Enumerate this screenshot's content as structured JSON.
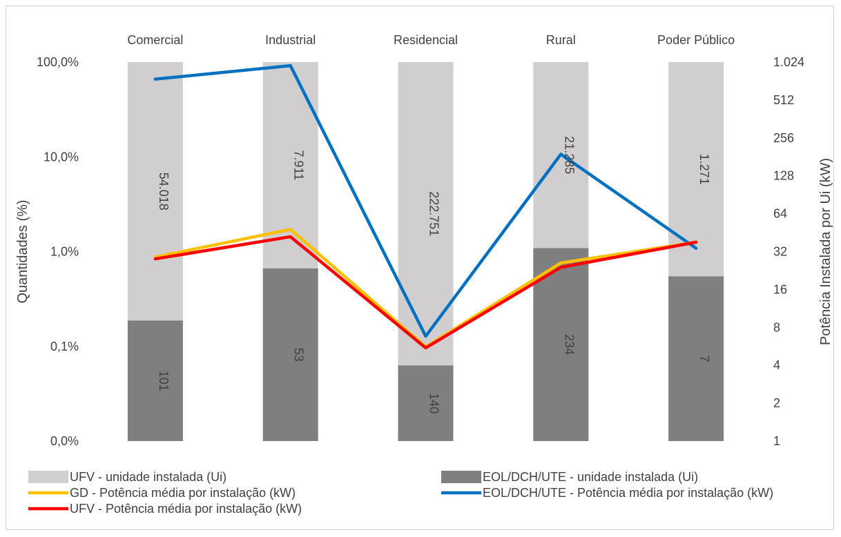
{
  "chart_data": {
    "type": "bar",
    "categories": [
      "Comercial",
      "Industrial",
      "Residencial",
      "Rural",
      "Poder Público"
    ],
    "bar_series": [
      {
        "name": "UFV - unidade instalada (Ui)",
        "color": "#d0cece",
        "values_pct": [
          99.81,
          99.33,
          99.94,
          98.91,
          99.45
        ],
        "labels": [
          "54.018",
          "7.911",
          "222.751",
          "21.285",
          "1.271"
        ]
      },
      {
        "name": "EOL/DCH/UTE - unidade instalada (Ui)",
        "color": "#7f7f7f",
        "values_pct": [
          0.187,
          0.665,
          0.0628,
          1.088,
          0.548
        ],
        "labels": [
          "101",
          "53",
          "140",
          "234",
          "7"
        ]
      }
    ],
    "line_series": [
      {
        "name": "GD - Potência média por instalação (kW)",
        "color": "#ffc000",
        "values": [
          29,
          48,
          5.6,
          26,
          38
        ]
      },
      {
        "name": "EOL/DCH/UTE - Potência média por instalação (kW)",
        "color": "#0070c0",
        "values": [
          750,
          960,
          6.8,
          190,
          34
        ]
      },
      {
        "name": "UFV - Potência média por instalação (kW)",
        "color": "#ff0000",
        "values": [
          28,
          42,
          5.5,
          24,
          38
        ]
      }
    ],
    "legend_order": [
      "UFV - unidade instalada (Ui)",
      "EOL/DCH/UTE - unidade instalada (Ui)",
      "GD - Potência média por instalação (kW)",
      "EOL/DCH/UTE - Potência média por instalação (kW)",
      "UFV - Potência média por instalação (kW)"
    ],
    "y_left": {
      "label": "Quantidades (%)",
      "scale": "log",
      "range_pct": [
        0.01,
        100
      ],
      "ticks": [
        0.01,
        0.1,
        1,
        10,
        100
      ],
      "tick_labels": [
        "0,0%",
        "0,1%",
        "1,0%",
        "10,0%",
        "100,0%"
      ]
    },
    "y_right": {
      "label": "Potência Instalada por Ui (kW)",
      "scale": "log2",
      "range": [
        1,
        1024
      ],
      "ticks": [
        1,
        2,
        4,
        8,
        16,
        32,
        64,
        128,
        256,
        512,
        1024
      ],
      "tick_labels": [
        "1",
        "2",
        "4",
        "8",
        "16",
        "32",
        "64",
        "128",
        "256",
        "512",
        "1.024"
      ]
    },
    "category_axis_position": "top",
    "legend_position": "bottom",
    "grid": false
  }
}
